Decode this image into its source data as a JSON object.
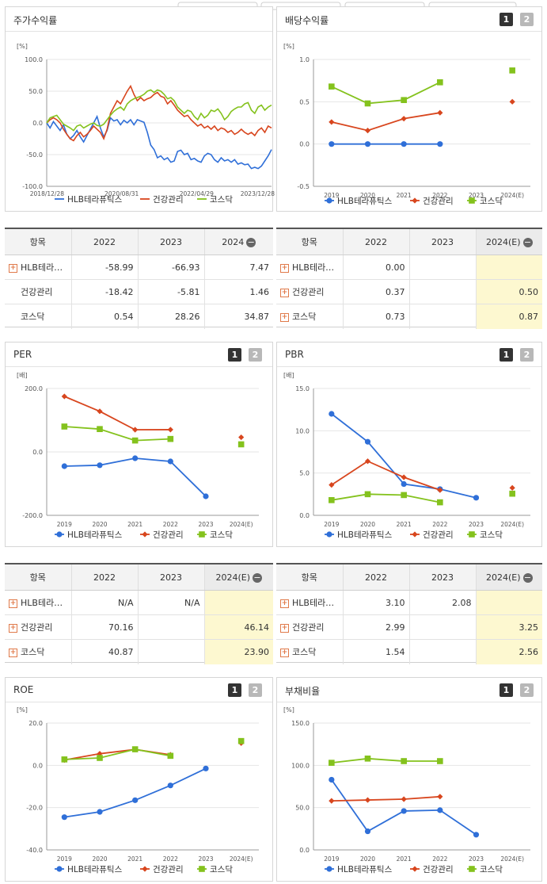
{
  "colors": {
    "hlb": "#2f6fd8",
    "health": "#d8461e",
    "kosdaq": "#84c21d"
  },
  "series_names": [
    "HLB테라퓨틱스",
    "건강관리",
    "코스닥"
  ],
  "buttons": {
    "one": "1",
    "two": "2"
  },
  "minus_icon": "−",
  "panels": {
    "stock": {
      "title": "주가수익률"
    },
    "dividend": {
      "title": "배당수익률"
    },
    "per": {
      "title": "PER"
    },
    "pbr": {
      "title": "PBR"
    },
    "roe": {
      "title": "ROE"
    },
    "debt": {
      "title": "부채비율"
    }
  },
  "tables": {
    "stock": {
      "headers": [
        "항목",
        "2022",
        "2023",
        "2024"
      ],
      "rows": [
        {
          "name": "HLB테라…",
          "plus": true,
          "v": [
            "-58.99",
            "-66.93",
            "7.47"
          ]
        },
        {
          "name": "건강관리",
          "plus": false,
          "v": [
            "-18.42",
            "-5.81",
            "1.46"
          ]
        },
        {
          "name": "코스닥",
          "plus": false,
          "v": [
            "0.54",
            "28.26",
            "34.87"
          ]
        }
      ]
    },
    "dividend": {
      "headers": [
        "항목",
        "2022",
        "2023",
        "2024(E)"
      ],
      "rows": [
        {
          "name": "HLB테라…",
          "plus": true,
          "v": [
            "0.00",
            "",
            ""
          ]
        },
        {
          "name": "건강관리",
          "plus": true,
          "v": [
            "0.37",
            "",
            "0.50"
          ]
        },
        {
          "name": "코스닥",
          "plus": true,
          "v": [
            "0.73",
            "",
            "0.87"
          ]
        }
      ]
    },
    "per": {
      "headers": [
        "항목",
        "2022",
        "2023",
        "2024(E)"
      ],
      "rows": [
        {
          "name": "HLB테라…",
          "plus": true,
          "v": [
            "N/A",
            "N/A",
            ""
          ]
        },
        {
          "name": "건강관리",
          "plus": true,
          "v": [
            "70.16",
            "",
            "46.14"
          ]
        },
        {
          "name": "코스닥",
          "plus": true,
          "v": [
            "40.87",
            "",
            "23.90"
          ]
        }
      ]
    },
    "pbr": {
      "headers": [
        "항목",
        "2022",
        "2023",
        "2024(E)"
      ],
      "rows": [
        {
          "name": "HLB테라…",
          "plus": true,
          "v": [
            "3.10",
            "2.08",
            ""
          ]
        },
        {
          "name": "건강관리",
          "plus": true,
          "v": [
            "2.99",
            "",
            "3.25"
          ]
        },
        {
          "name": "코스닥",
          "plus": true,
          "v": [
            "1.54",
            "",
            "2.56"
          ]
        }
      ]
    }
  },
  "chart_data": [
    {
      "id": "stock",
      "type": "line",
      "unit": "[%]",
      "yticks": [
        "100.0",
        "50.0",
        "0.0",
        "-50.0",
        "-100.0"
      ],
      "ylim": [
        -100,
        100
      ],
      "xticks": [
        "2018/12/28",
        "2020/08/31",
        "2022/04/29",
        "2023/12/28"
      ],
      "series": [
        {
          "name": "HLB테라퓨틱스",
          "values": [
            0,
            -8,
            2,
            -5,
            -12,
            -3,
            -18,
            -25,
            -20,
            -12,
            -22,
            -30,
            -20,
            -10,
            0,
            10,
            -8,
            -22,
            -12,
            8,
            3,
            5,
            -3,
            4,
            0,
            5,
            -3,
            5,
            3,
            1,
            -15,
            -35,
            -42,
            -55,
            -52,
            -58,
            -55,
            -62,
            -60,
            -45,
            -43,
            -50,
            -48,
            -58,
            -56,
            -60,
            -62,
            -52,
            -48,
            -50,
            -58,
            -62,
            -55,
            -60,
            -58,
            -62,
            -58,
            -65,
            -63,
            -66,
            -65,
            -72,
            -70,
            -72,
            -68,
            -60,
            -52,
            -42
          ]
        },
        {
          "name": "건강관리",
          "values": [
            0,
            5,
            8,
            5,
            0,
            -10,
            -18,
            -25,
            -28,
            -20,
            -15,
            -22,
            -18,
            -12,
            -5,
            -10,
            -15,
            -25,
            -10,
            15,
            25,
            35,
            30,
            40,
            50,
            58,
            45,
            35,
            40,
            35,
            38,
            40,
            45,
            48,
            42,
            40,
            30,
            35,
            28,
            20,
            15,
            10,
            12,
            5,
            0,
            -5,
            -2,
            -8,
            -5,
            -10,
            -5,
            -12,
            -8,
            -10,
            -15,
            -12,
            -18,
            -15,
            -10,
            -15,
            -18,
            -15,
            -20,
            -12,
            -8,
            -15,
            -5,
            -8
          ]
        },
        {
          "name": "코스닥",
          "values": [
            0,
            8,
            10,
            12,
            5,
            -2,
            -5,
            -8,
            -12,
            -5,
            -3,
            -8,
            -5,
            -2,
            0,
            -4,
            -5,
            -2,
            5,
            12,
            18,
            22,
            25,
            20,
            30,
            35,
            38,
            40,
            42,
            45,
            50,
            52,
            48,
            52,
            50,
            45,
            38,
            40,
            35,
            25,
            20,
            15,
            20,
            18,
            10,
            5,
            15,
            8,
            12,
            20,
            18,
            22,
            15,
            5,
            10,
            18,
            22,
            25,
            25,
            30,
            32,
            20,
            15,
            25,
            28,
            20,
            25,
            28
          ]
        }
      ]
    },
    {
      "id": "dividend",
      "type": "line",
      "unit": "[%]",
      "categories": [
        "2019",
        "2020",
        "2021",
        "2022",
        "2023",
        "2024(E)"
      ],
      "yticks": [
        "1.0",
        "0.5",
        "0.0",
        "-0.5"
      ],
      "ylim": [
        -0.5,
        1.0
      ],
      "series": [
        {
          "name": "HLB테라퓨틱스",
          "values": [
            0.0,
            0.0,
            0.0,
            0.0,
            null,
            null
          ]
        },
        {
          "name": "건강관리",
          "values": [
            0.26,
            0.16,
            0.3,
            0.37,
            null,
            0.5
          ]
        },
        {
          "name": "코스닥",
          "values": [
            0.68,
            0.48,
            0.52,
            0.73,
            null,
            0.87
          ]
        }
      ]
    },
    {
      "id": "per",
      "type": "line",
      "unit": "[배]",
      "categories": [
        "2019",
        "2020",
        "2021",
        "2022",
        "2023",
        "2024(E)"
      ],
      "yticks": [
        "200.0",
        "0.0",
        "-200.0"
      ],
      "ylim": [
        -200,
        200
      ],
      "series": [
        {
          "name": "HLB테라퓨틱스",
          "values": [
            -45,
            -42,
            -20,
            -30,
            -140,
            null
          ]
        },
        {
          "name": "건강관리",
          "values": [
            175,
            128,
            70,
            70.16,
            null,
            46.14
          ]
        },
        {
          "name": "코스닥",
          "values": [
            80,
            72,
            36,
            40.87,
            null,
            23.9
          ]
        }
      ]
    },
    {
      "id": "pbr",
      "type": "line",
      "unit": "[배]",
      "categories": [
        "2019",
        "2020",
        "2021",
        "2022",
        "2023",
        "2024(E)"
      ],
      "yticks": [
        "15.0",
        "10.0",
        "5.0",
        "0.0"
      ],
      "ylim": [
        0,
        15
      ],
      "series": [
        {
          "name": "HLB테라퓨틱스",
          "values": [
            12.0,
            8.7,
            3.7,
            3.1,
            2.08,
            null
          ]
        },
        {
          "name": "건강관리",
          "values": [
            3.6,
            6.4,
            4.5,
            2.99,
            null,
            3.25
          ]
        },
        {
          "name": "코스닥",
          "values": [
            1.8,
            2.5,
            2.4,
            1.54,
            null,
            2.56
          ]
        }
      ]
    },
    {
      "id": "roe",
      "type": "line",
      "unit": "[%]",
      "categories": [
        "2019",
        "2020",
        "2021",
        "2022",
        "2023",
        "2024(E)"
      ],
      "yticks": [
        "20.0",
        "0.0",
        "-20.0",
        "-40.0"
      ],
      "ylim": [
        -40,
        20
      ],
      "series": [
        {
          "name": "HLB테라퓨틱스",
          "values": [
            -24.5,
            -22,
            -16.5,
            -9.5,
            -1.5,
            null
          ]
        },
        {
          "name": "건강관리",
          "values": [
            2.5,
            5.5,
            7.5,
            5.0,
            null,
            10.5
          ]
        },
        {
          "name": "코스닥",
          "values": [
            2.8,
            3.5,
            7.6,
            4.5,
            null,
            11.5
          ]
        }
      ]
    },
    {
      "id": "debt",
      "type": "line",
      "unit": "[%]",
      "categories": [
        "2019",
        "2020",
        "2021",
        "2022",
        "2023",
        "2024(E)"
      ],
      "yticks": [
        "150.0",
        "100.0",
        "50.0",
        "0.0"
      ],
      "ylim": [
        0,
        150
      ],
      "series": [
        {
          "name": "HLB테라퓨틱스",
          "values": [
            83,
            22,
            46,
            47,
            18,
            null
          ]
        },
        {
          "name": "건강관리",
          "values": [
            58,
            59,
            60,
            63,
            null,
            null
          ]
        },
        {
          "name": "코스닥",
          "values": [
            103,
            108,
            105,
            105,
            null,
            null
          ]
        }
      ]
    }
  ]
}
